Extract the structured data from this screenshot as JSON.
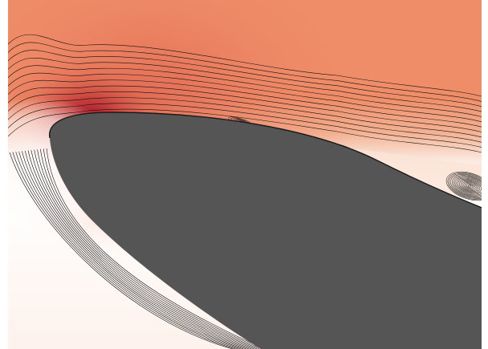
{
  "figure": {
    "kind": "airfoil leading-edge flow visualization",
    "colors": {
      "background": "#ffffff",
      "field_freestream": "#ef8d68",
      "field_peak": "#b51d2c",
      "field_stagnation": "#ffffff",
      "field_transition": "#f6d9cb",
      "body": "#555555",
      "streamline": "#111111"
    },
    "streamline_count_upper": 12,
    "streamline_count_lower": 13,
    "separation_eddy_count": 3
  }
}
